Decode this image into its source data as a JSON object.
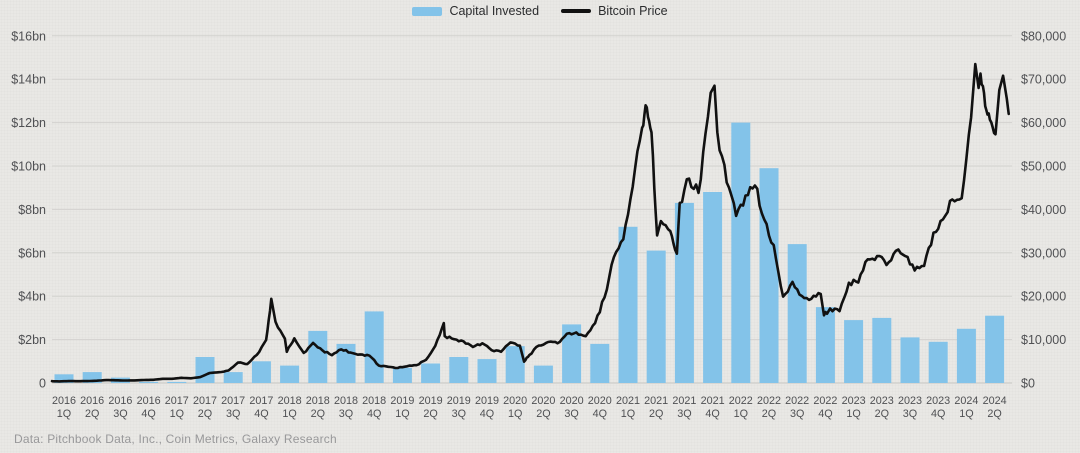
{
  "legend": {
    "capital_invested": "Capital Invested",
    "bitcoin_price": "Bitcoin Price"
  },
  "footer": {
    "source_text": "Data: Pitchbook Data, Inc., Coin Metrics, Galaxy Research"
  },
  "colors": {
    "background": "#e9e8e5",
    "bar": "#83c3e9",
    "line": "#111111",
    "gridline": "#d3d2cf",
    "baseline": "#c7c6c3",
    "axis_text": "#4f5053",
    "footer_text": "#98989a",
    "legend_text": "#2b2c2e"
  },
  "chart_data": {
    "type": "combo",
    "grid": true,
    "legend_position": "top-center",
    "categories": [
      "2016 1Q",
      "2016 2Q",
      "2016 3Q",
      "2016 4Q",
      "2017 1Q",
      "2017 2Q",
      "2017 3Q",
      "2017 4Q",
      "2018 1Q",
      "2018 2Q",
      "2018 3Q",
      "2018 4Q",
      "2019 1Q",
      "2019 2Q",
      "2019 3Q",
      "2019 4Q",
      "2020 1Q",
      "2020 2Q",
      "2020 3Q",
      "2020 4Q",
      "2021 1Q",
      "2021 2Q",
      "2021 3Q",
      "2021 4Q",
      "2022 1Q",
      "2022 2Q",
      "2022 3Q",
      "2022 4Q",
      "2023 1Q",
      "2023 2Q",
      "2023 3Q",
      "2023 4Q",
      "2024 1Q",
      "2024 2Q"
    ],
    "left_axis": {
      "title": "Capital Invested ($bn)",
      "min": 0,
      "max": 16,
      "step": 2,
      "ticks": [
        "0",
        "$2bn",
        "$4bn",
        "$6bn",
        "$8bn",
        "$10bn",
        "$12bn",
        "$14bn",
        "$16bn"
      ]
    },
    "right_axis": {
      "title": "Bitcoin Price ($)",
      "min": 0,
      "max": 80000,
      "step": 10000,
      "ticks": [
        "$0",
        "$10,000",
        "$20,000",
        "$30,000",
        "$40,000",
        "$50,000",
        "$60,000",
        "$70,000",
        "$80,000"
      ]
    },
    "series": [
      {
        "name": "Capital Invested",
        "type": "bar",
        "axis": "left",
        "unit": "$bn",
        "values": [
          0.4,
          0.5,
          0.25,
          0.05,
          0.05,
          1.2,
          0.5,
          1.0,
          0.8,
          2.4,
          1.8,
          3.3,
          0.7,
          0.9,
          1.2,
          1.1,
          1.7,
          0.8,
          2.7,
          1.8,
          7.2,
          6.1,
          8.3,
          8.8,
          12.0,
          9.9,
          6.4,
          3.5,
          2.9,
          3.0,
          2.1,
          1.9,
          2.5,
          3.1
        ]
      },
      {
        "name": "Bitcoin Price",
        "type": "line",
        "axis": "right",
        "unit": "$",
        "x_unit": "months_since_2016_01",
        "points": [
          [
            0,
            430
          ],
          [
            1,
            370
          ],
          [
            2,
            437
          ],
          [
            3,
            416
          ],
          [
            4,
            448
          ],
          [
            5,
            531
          ],
          [
            6,
            670
          ],
          [
            7,
            624
          ],
          [
            8,
            575
          ],
          [
            9,
            610
          ],
          [
            10,
            700
          ],
          [
            11,
            745
          ],
          [
            12,
            963
          ],
          [
            13,
            970
          ],
          [
            14,
            1190
          ],
          [
            15,
            1080
          ],
          [
            16,
            1350
          ],
          [
            17,
            2300
          ],
          [
            18,
            2480
          ],
          [
            19,
            2875
          ],
          [
            20,
            4700
          ],
          [
            21,
            4360
          ],
          [
            22,
            6450
          ],
          [
            23,
            9900
          ],
          [
            23.55,
            19400
          ],
          [
            24,
            14100
          ],
          [
            25,
            10200
          ],
          [
            25.2,
            7200
          ],
          [
            26,
            10300
          ],
          [
            27,
            6930
          ],
          [
            28,
            9240
          ],
          [
            29,
            7500
          ],
          [
            30,
            6400
          ],
          [
            31,
            7750
          ],
          [
            32,
            7000
          ],
          [
            33,
            6600
          ],
          [
            34,
            6300
          ],
          [
            35,
            4020
          ],
          [
            36,
            3740
          ],
          [
            37,
            3460
          ],
          [
            38,
            3850
          ],
          [
            39,
            4100
          ],
          [
            40,
            5320
          ],
          [
            41,
            8560
          ],
          [
            41.9,
            13800
          ],
          [
            42,
            10800
          ],
          [
            43,
            10100
          ],
          [
            44,
            9600
          ],
          [
            45,
            8300
          ],
          [
            46,
            9150
          ],
          [
            47,
            7550
          ],
          [
            48,
            7190
          ],
          [
            49,
            9350
          ],
          [
            50,
            8600
          ],
          [
            50.45,
            4900
          ],
          [
            51,
            6440
          ],
          [
            52,
            8620
          ],
          [
            53,
            9450
          ],
          [
            54,
            9140
          ],
          [
            55,
            11350
          ],
          [
            56,
            11650
          ],
          [
            57,
            10780
          ],
          [
            58,
            13800
          ],
          [
            59,
            19700
          ],
          [
            60,
            29000
          ],
          [
            61,
            33100
          ],
          [
            62,
            45200
          ],
          [
            63,
            58800
          ],
          [
            63.5,
            63500
          ],
          [
            64,
            57750
          ],
          [
            64.6,
            34000
          ],
          [
            65,
            37300
          ],
          [
            66,
            35000
          ],
          [
            66.7,
            29800
          ],
          [
            67,
            41500
          ],
          [
            68,
            47100
          ],
          [
            69,
            43800
          ],
          [
            70,
            61300
          ],
          [
            70.3,
            66900
          ],
          [
            70.7,
            68500
          ],
          [
            71,
            57800
          ],
          [
            72,
            46200
          ],
          [
            73,
            38500
          ],
          [
            74,
            43200
          ],
          [
            75,
            45500
          ],
          [
            76,
            37650
          ],
          [
            77,
            31800
          ],
          [
            78,
            19900
          ],
          [
            79,
            23300
          ],
          [
            80,
            20050
          ],
          [
            81,
            19400
          ],
          [
            82,
            20500
          ],
          [
            82.35,
            15600
          ],
          [
            83,
            17160
          ],
          [
            84,
            16550
          ],
          [
            85,
            23100
          ],
          [
            86,
            23150
          ],
          [
            87,
            28500
          ],
          [
            88,
            29250
          ],
          [
            89,
            27200
          ],
          [
            90,
            30470
          ],
          [
            91,
            29230
          ],
          [
            92,
            25930
          ],
          [
            93,
            26960
          ],
          [
            94,
            34650
          ],
          [
            95,
            37700
          ],
          [
            96,
            42270
          ],
          [
            97,
            42580
          ],
          [
            98,
            61200
          ],
          [
            98.45,
            73500
          ],
          [
            98.8,
            68000
          ],
          [
            99,
            71300
          ],
          [
            99.5,
            63800
          ],
          [
            100,
            60640
          ],
          [
            100.6,
            57300
          ],
          [
            101,
            67500
          ],
          [
            101.4,
            70800
          ],
          [
            101.8,
            65500
          ],
          [
            102,
            62000
          ]
        ]
      }
    ]
  }
}
